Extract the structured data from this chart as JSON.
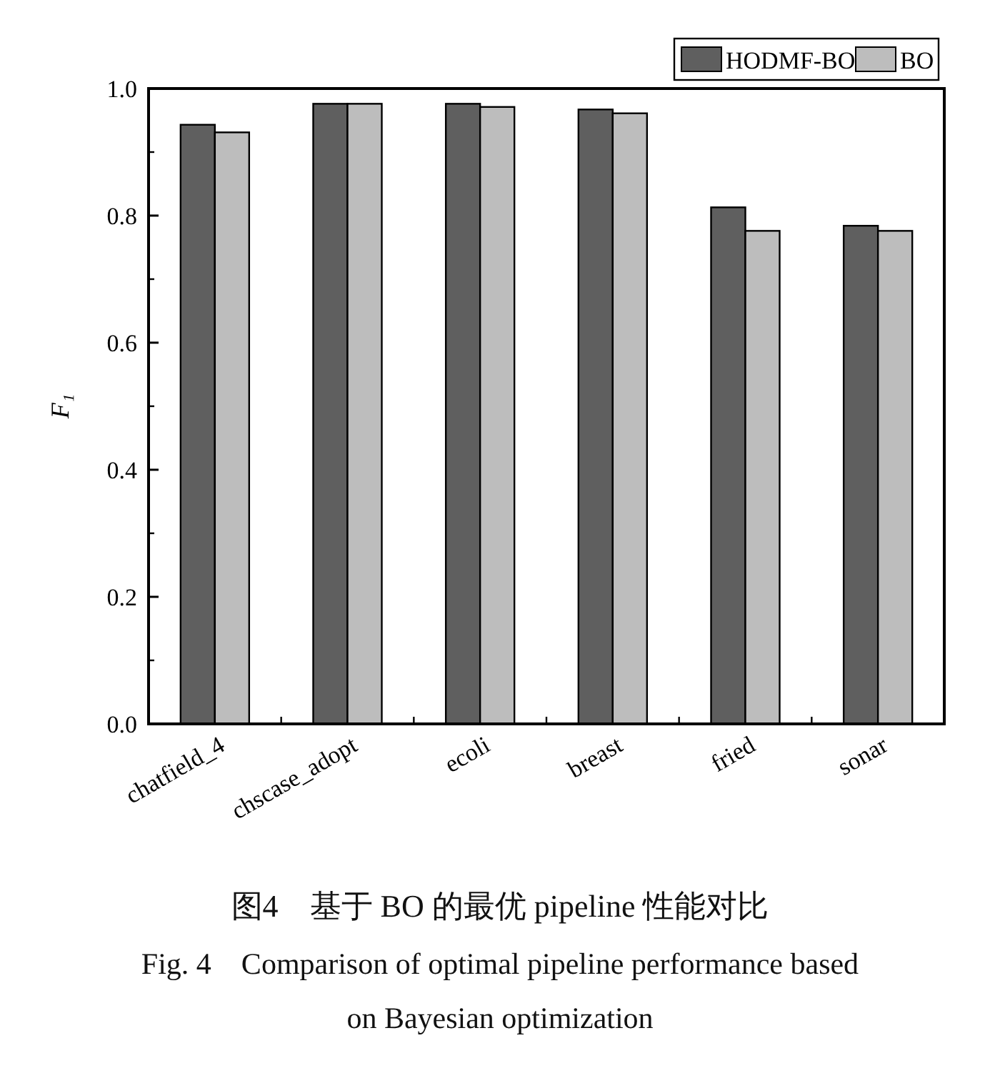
{
  "chart_data": {
    "type": "bar",
    "title": "图4　基于 BO 的最优 pipeline 性能对比",
    "subtitle": "Fig. 4　Comparison of optimal pipeline performance based on Bayesian optimization",
    "ylabel": "F₁",
    "categories": [
      "chatfield_4",
      "chscase_adopt",
      "ecoli",
      "breast",
      "fried",
      "sonar"
    ],
    "series": [
      {
        "name": "HODMF-BO",
        "color": "#5f5f5f",
        "values": [
          0.943,
          0.976,
          0.976,
          0.967,
          0.813,
          0.784
        ]
      },
      {
        "name": "BO",
        "color": "#bdbdbd",
        "values": [
          0.931,
          0.976,
          0.971,
          0.961,
          0.776,
          0.776
        ]
      }
    ],
    "ylim": [
      0,
      1
    ],
    "yticks": [
      {
        "value": 0,
        "label": "0.0"
      },
      0.2,
      0.4,
      0.6,
      0.8,
      {
        "value": 1,
        "label": "1.0"
      }
    ],
    "legend": "top right",
    "grid": false
  }
}
